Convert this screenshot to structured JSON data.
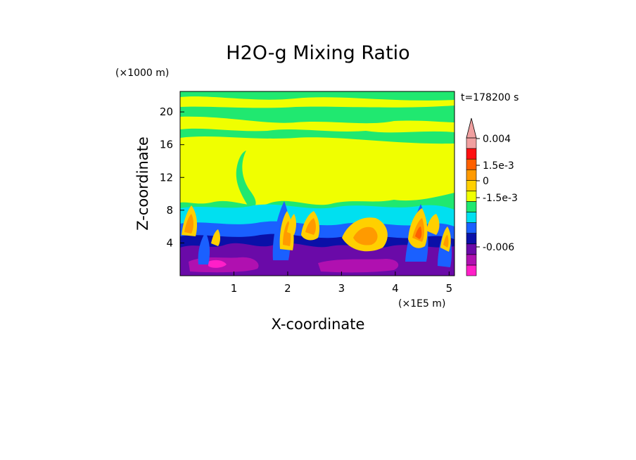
{
  "chart_data": {
    "type": "heatmap",
    "title": "H2O-g Mixing Ratio",
    "xlabel": "X-coordinate",
    "ylabel": "Z-coordinate",
    "x_unit": "(×1E5 m)",
    "y_unit": "(×1000 m)",
    "time_label": "t=178200 s",
    "xlim": [
      0,
      5.1
    ],
    "ylim": [
      0,
      22.5
    ],
    "x_ticks": [
      1,
      2,
      3,
      4,
      5
    ],
    "y_ticks": [
      4,
      8,
      12,
      16,
      20
    ],
    "colorbar": {
      "colors": [
        "#ff1fc8",
        "#b010b0",
        "#6a0aa8",
        "#0a10a8",
        "#1a60ff",
        "#00e0f0",
        "#20e870",
        "#f0ff00",
        "#ffd000",
        "#ff9a00",
        "#ff6000",
        "#ff1010",
        "#f0a0a0"
      ],
      "tick_labels": [
        "0.004",
        "1.5e-3",
        "0",
        "-1.5e-3",
        "-0.006"
      ],
      "extend": "max"
    }
  }
}
